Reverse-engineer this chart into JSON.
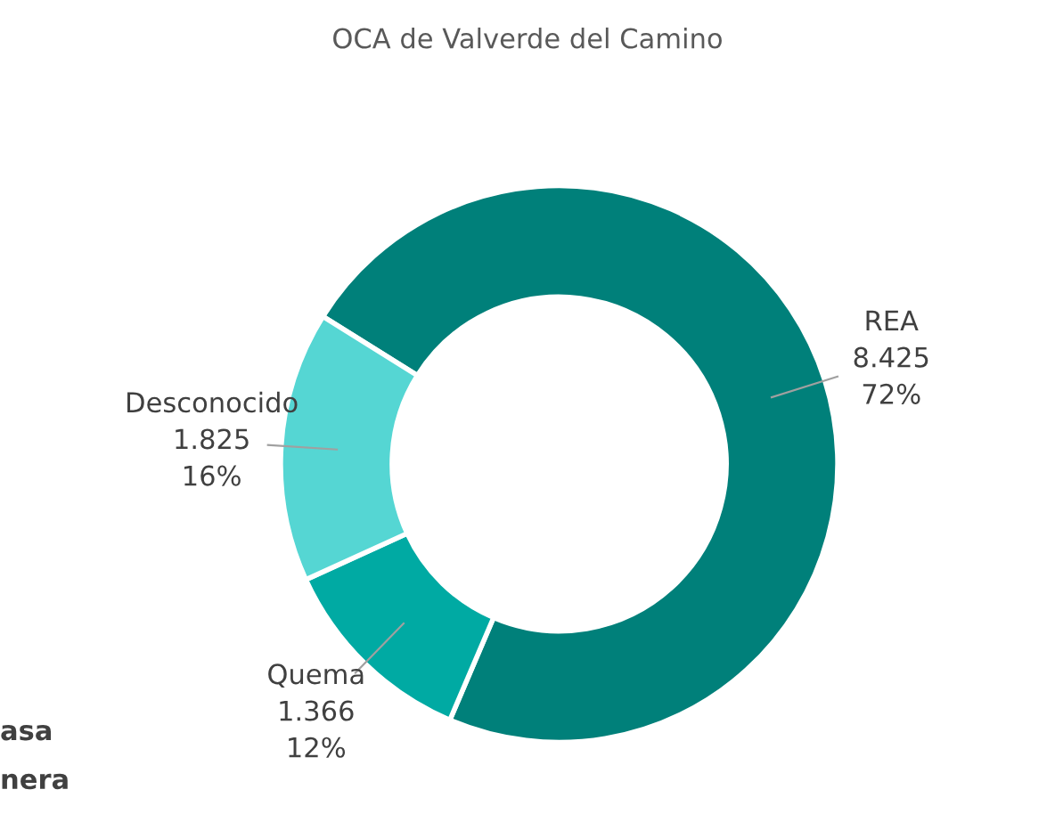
{
  "chart_data": {
    "type": "donut",
    "title": "OCA de Valverde del Camino",
    "categories": [
      "REA",
      "Quema",
      "Desconocido"
    ],
    "values": [
      8425,
      1366,
      1825
    ],
    "value_labels": [
      "8.425\n72%",
      "1.366\n12%",
      "1.825\n16%"
    ],
    "colors": [
      "#00807a",
      "#00aaa3",
      "#55d6d3"
    ],
    "annotations": [
      "asa",
      "nera"
    ],
    "legend": false
  }
}
